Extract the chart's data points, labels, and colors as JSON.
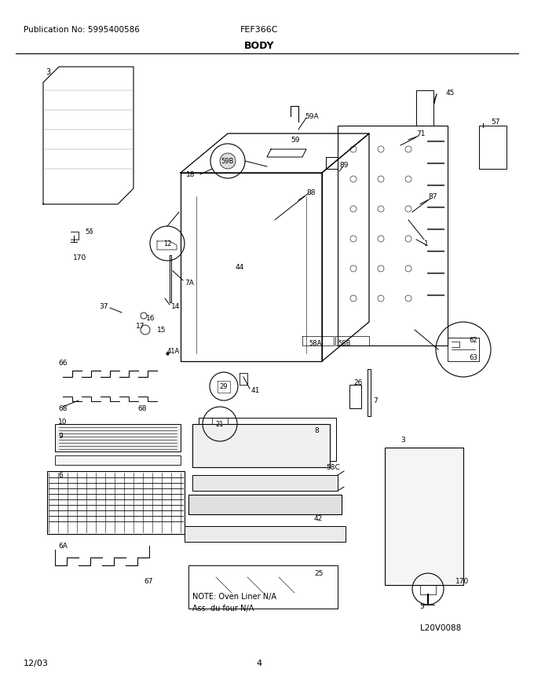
{
  "pub_no": "Publication No: 5995400586",
  "model": "FEF366C",
  "section": "BODY",
  "date": "12/03",
  "page": "4",
  "image_id": "L20V0088",
  "note_line1": "NOTE: Oven Liner N/A",
  "note_line2": "Ass. du four N/A",
  "bg_color": "#ffffff",
  "line_color": "#000000",
  "fig_width": 6.8,
  "fig_height": 8.8,
  "dpi": 100
}
